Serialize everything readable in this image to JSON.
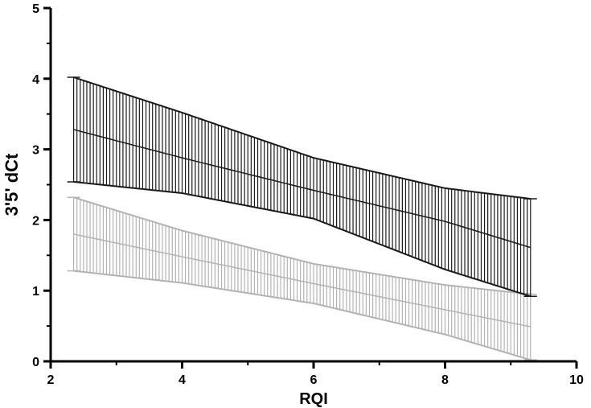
{
  "chart_data": {
    "type": "line",
    "title": "",
    "xlabel": "RQI",
    "ylabel": "3'5' dCt",
    "xlim": [
      2,
      10
    ],
    "ylim": [
      0,
      5
    ],
    "x_ticks": [
      2,
      4,
      6,
      8,
      10
    ],
    "y_ticks": [
      0,
      1,
      2,
      3,
      4,
      5
    ],
    "grid": false,
    "legend": "none",
    "x_range": [
      2.35,
      9.3
    ],
    "error_bar_step": 0.05,
    "series": [
      {
        "color": "#1a1a1a",
        "x": [
          2.35,
          4.0,
          6.0,
          8.0,
          9.3
        ],
        "mean": [
          3.28,
          2.88,
          2.42,
          1.98,
          1.61
        ],
        "upper": [
          4.02,
          3.52,
          2.88,
          2.45,
          2.3
        ],
        "lower": [
          2.54,
          2.38,
          2.02,
          1.3,
          0.92
        ]
      },
      {
        "color": "#b3b3b3",
        "x": [
          2.35,
          4.0,
          6.0,
          8.0,
          9.3
        ],
        "mean": [
          1.8,
          1.48,
          1.1,
          0.73,
          0.49
        ],
        "upper": [
          2.32,
          1.85,
          1.38,
          1.08,
          0.95
        ],
        "lower": [
          1.28,
          1.11,
          0.82,
          0.38,
          0.02
        ]
      }
    ]
  }
}
